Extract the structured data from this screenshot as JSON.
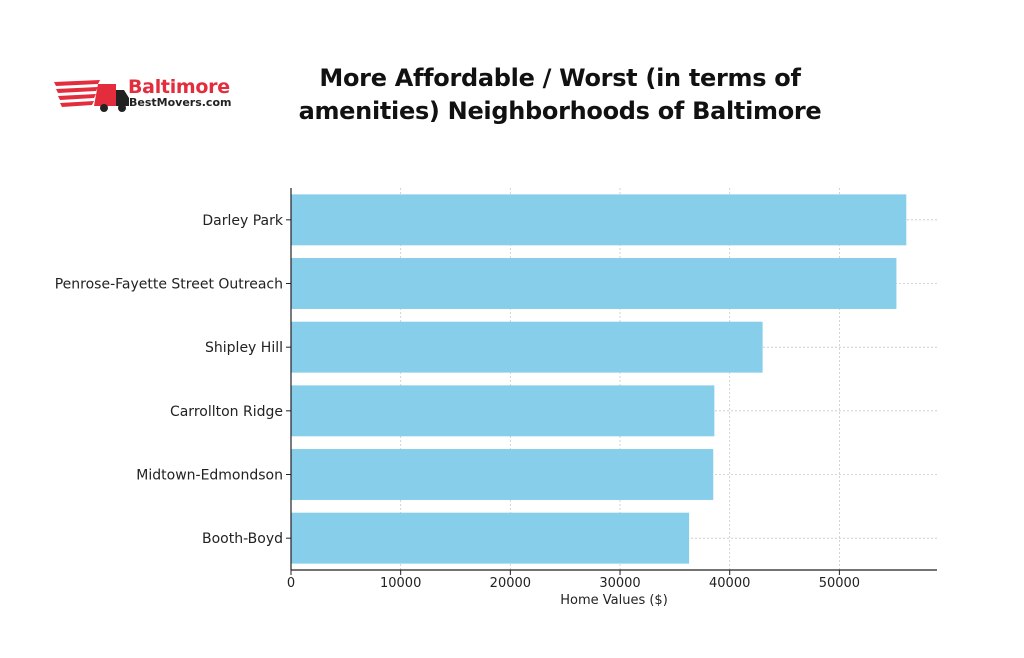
{
  "logo": {
    "brand": "Baltimore",
    "sub": "BestMovers.com",
    "icon": "moving-truck-icon",
    "colors": {
      "accent": "#e32d3d",
      "dark": "#222222"
    }
  },
  "chart_data": {
    "type": "bar",
    "orientation": "horizontal",
    "title_lines": [
      "More Affordable / Worst (in terms of",
      "amenities) Neighborhoods of Baltimore"
    ],
    "xlabel": "Home Values ($)",
    "ylabel": "",
    "categories": [
      "Darley Park",
      "Penrose-Fayette Street Outreach",
      "Shipley Hill",
      "Carrollton Ridge",
      "Midtown-Edmondson",
      "Booth-Boyd"
    ],
    "values": [
      56100,
      55200,
      43000,
      38600,
      38500,
      36300
    ],
    "xlim": [
      0,
      58900
    ],
    "xticks": [
      0,
      10000,
      20000,
      30000,
      40000,
      50000
    ],
    "grid": true,
    "bar_color": "#87ceeb"
  }
}
